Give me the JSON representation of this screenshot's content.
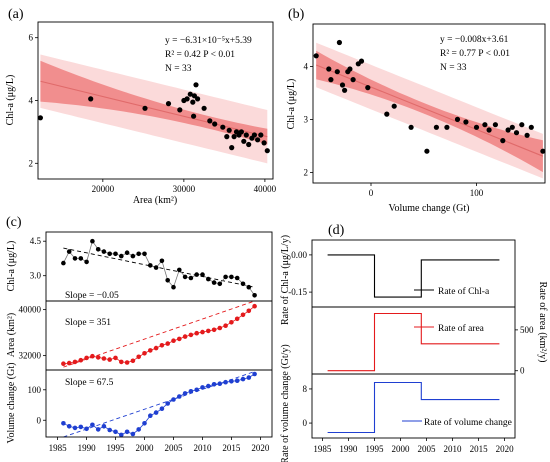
{
  "chart_data": [
    {
      "panel_label": "(a)",
      "type": "scatter",
      "xlabel": "Area (km²)",
      "ylabel": "Chl-a (μg/L)",
      "xlim": [
        12000,
        41000
      ],
      "ylim": [
        1.5,
        6.5
      ],
      "xticks": [
        20000,
        30000,
        40000
      ],
      "yticks": [
        2,
        4,
        6
      ],
      "annotations": [
        "y = −6.31×10⁻⁵x+5.39",
        "R² = 0.42  P < 0.01",
        "N = 33"
      ],
      "fit": {
        "slope": -6.31e-05,
        "intercept": 5.39
      },
      "colors": {
        "points": "#000000",
        "line": "#e06a6a",
        "ci": "#f18e8e",
        "pi": "#fbdada"
      },
      "points": [
        {
          "x": 12300,
          "y": 3.45
        },
        {
          "x": 18500,
          "y": 4.05
        },
        {
          "x": 25200,
          "y": 3.75
        },
        {
          "x": 28100,
          "y": 3.9
        },
        {
          "x": 29500,
          "y": 3.7
        },
        {
          "x": 30000,
          "y": 4.0
        },
        {
          "x": 30400,
          "y": 4.05
        },
        {
          "x": 30800,
          "y": 4.2
        },
        {
          "x": 31100,
          "y": 3.95
        },
        {
          "x": 31300,
          "y": 4.15
        },
        {
          "x": 31500,
          "y": 4.5
        },
        {
          "x": 31700,
          "y": 4.05
        },
        {
          "x": 31200,
          "y": 3.5
        },
        {
          "x": 32500,
          "y": 3.75
        },
        {
          "x": 33200,
          "y": 3.35
        },
        {
          "x": 33800,
          "y": 3.25
        },
        {
          "x": 34800,
          "y": 3.15
        },
        {
          "x": 35300,
          "y": 2.85
        },
        {
          "x": 35600,
          "y": 3.05
        },
        {
          "x": 35900,
          "y": 2.5
        },
        {
          "x": 36200,
          "y": 2.85
        },
        {
          "x": 36500,
          "y": 3.0
        },
        {
          "x": 36800,
          "y": 2.9
        },
        {
          "x": 37100,
          "y": 3.0
        },
        {
          "x": 37400,
          "y": 2.7
        },
        {
          "x": 37700,
          "y": 2.9
        },
        {
          "x": 38000,
          "y": 2.6
        },
        {
          "x": 38400,
          "y": 2.8
        },
        {
          "x": 38700,
          "y": 2.9
        },
        {
          "x": 39100,
          "y": 2.75
        },
        {
          "x": 39500,
          "y": 2.9
        },
        {
          "x": 39900,
          "y": 2.65
        },
        {
          "x": 40300,
          "y": 2.4
        }
      ]
    },
    {
      "panel_label": "(b)",
      "type": "scatter",
      "xlabel": "Volume change (Gt)",
      "ylabel": "Chl-a (μg/L)",
      "xlim": [
        -55,
        165
      ],
      "ylim": [
        1.8,
        4.8
      ],
      "xticks": [
        0,
        100
      ],
      "yticks": [
        2,
        3,
        4
      ],
      "annotations": [
        "y = −0.008x+3.61",
        "R² = 0.77  P < 0.01",
        "N = 33"
      ],
      "fit": {
        "slope": -0.008,
        "intercept": 3.61
      },
      "colors": {
        "points": "#000000",
        "line": "#e06a6a",
        "ci": "#f18e8e",
        "pi": "#fbdada"
      },
      "points": [
        {
          "x": -52,
          "y": 4.2
        },
        {
          "x": -40,
          "y": 3.95
        },
        {
          "x": -38,
          "y": 3.75
        },
        {
          "x": -32,
          "y": 3.9
        },
        {
          "x": -30,
          "y": 4.45
        },
        {
          "x": -27,
          "y": 3.65
        },
        {
          "x": -25,
          "y": 3.55
        },
        {
          "x": -22,
          "y": 3.9
        },
        {
          "x": -20,
          "y": 3.95
        },
        {
          "x": -17,
          "y": 3.75
        },
        {
          "x": -12,
          "y": 4.05
        },
        {
          "x": -9,
          "y": 4.1
        },
        {
          "x": -3,
          "y": 3.6
        },
        {
          "x": 15,
          "y": 3.1
        },
        {
          "x": 22,
          "y": 3.25
        },
        {
          "x": 38,
          "y": 2.85
        },
        {
          "x": 53,
          "y": 2.4
        },
        {
          "x": 62,
          "y": 2.85
        },
        {
          "x": 72,
          "y": 2.85
        },
        {
          "x": 82,
          "y": 3.0
        },
        {
          "x": 90,
          "y": 2.95
        },
        {
          "x": 100,
          "y": 2.85
        },
        {
          "x": 108,
          "y": 2.9
        },
        {
          "x": 112,
          "y": 2.8
        },
        {
          "x": 118,
          "y": 2.9
        },
        {
          "x": 125,
          "y": 2.6
        },
        {
          "x": 130,
          "y": 2.8
        },
        {
          "x": 134,
          "y": 2.85
        },
        {
          "x": 138,
          "y": 2.75
        },
        {
          "x": 143,
          "y": 2.9
        },
        {
          "x": 148,
          "y": 2.7
        },
        {
          "x": 152,
          "y": 2.85
        },
        {
          "x": 163,
          "y": 2.4
        }
      ]
    },
    {
      "panel_label": "(c)",
      "type": "line",
      "xlim": [
        1983,
        2022
      ],
      "xticks": [
        1985,
        1990,
        1995,
        2000,
        2005,
        2010,
        2015,
        2020
      ],
      "x": [
        1986,
        1987,
        1988,
        1989,
        1990,
        1991,
        1992,
        1993,
        1994,
        1995,
        1996,
        1997,
        1998,
        1999,
        2000,
        2001,
        2002,
        2003,
        2004,
        2005,
        2006,
        2007,
        2008,
        2009,
        2010,
        2011,
        2012,
        2013,
        2014,
        2015,
        2016,
        2017,
        2018,
        2019
      ],
      "series": [
        {
          "ylabel": "Chl-a (μg/L)",
          "ylim": [
            1.9,
            4.9
          ],
          "yticks": [
            4.5,
            3.0
          ],
          "ytick_labels": [
            "4.5",
            "3.0"
          ],
          "slope_label": "Slope = −0.05",
          "color": "#000000",
          "trend": [
            1986,
            4.2,
            2019,
            2.5
          ],
          "values": [
            3.55,
            4.05,
            3.75,
            3.75,
            3.6,
            4.5,
            4.15,
            4.05,
            3.95,
            3.95,
            3.85,
            4.0,
            3.85,
            3.95,
            3.95,
            3.45,
            3.35,
            3.65,
            2.8,
            2.5,
            3.25,
            2.95,
            2.9,
            3.05,
            3.05,
            2.85,
            2.7,
            2.65,
            2.95,
            2.95,
            2.9,
            2.65,
            2.5,
            2.15
          ]
        },
        {
          "ylabel": "Area (km²)",
          "ylim": [
            29500,
            41500
          ],
          "yticks": [
            40000,
            32000
          ],
          "ytick_labels": [
            "40000",
            "32000"
          ],
          "slope_label": "Slope = 351",
          "color": "#e41a1c",
          "trend": [
            1986,
            30000,
            2019,
            41500
          ],
          "values": [
            30600,
            30700,
            30900,
            31200,
            31600,
            31900,
            31700,
            31500,
            31300,
            31600,
            30900,
            30800,
            31100,
            31800,
            32400,
            32900,
            33300,
            33800,
            34100,
            34600,
            34900,
            35300,
            35600,
            35900,
            36100,
            36300,
            36500,
            36800,
            37200,
            37800,
            38400,
            39100,
            39800,
            40600
          ]
        },
        {
          "ylabel": "Volume change (Gt)",
          "ylim": [
            -55,
            165
          ],
          "yticks": [
            100,
            0
          ],
          "ytick_labels": [
            "100",
            "0"
          ],
          "slope_label": "Slope = 67.5",
          "color": "#1f3fd1",
          "trend": [
            1986,
            -55,
            2019,
            160
          ],
          "values": [
            -10,
            -20,
            -25,
            -22,
            -28,
            -15,
            -30,
            -20,
            -32,
            -38,
            -48,
            -38,
            -45,
            -30,
            -10,
            15,
            25,
            38,
            55,
            68,
            78,
            88,
            95,
            100,
            108,
            112,
            118,
            120,
            125,
            128,
            130,
            135,
            140,
            152
          ]
        }
      ]
    },
    {
      "panel_label": "(d)",
      "type": "line",
      "xlim": [
        1983,
        2022
      ],
      "xticks": [
        1985,
        1990,
        1995,
        2000,
        2005,
        2010,
        2015,
        2020
      ],
      "series": [
        {
          "name": "Rate of Chl-a",
          "ylabel": "Rate of Chl-a (μg/L/y)",
          "axis": "left",
          "ylim": [
            -0.21,
            0.06
          ],
          "yticks": [
            0.0,
            -0.15
          ],
          "ytick_labels": [
            "0.00",
            "-0.15"
          ],
          "color": "#000000",
          "segments": [
            [
              1986,
              1995,
              0.0
            ],
            [
              1995,
              2004,
              -0.17
            ],
            [
              2004,
              2019,
              -0.02
            ]
          ]
        },
        {
          "name": "Rate of area",
          "ylabel": "Rate of area (km²/y)",
          "axis": "right",
          "ylim": [
            -40,
            780
          ],
          "yticks": [
            500,
            0
          ],
          "ytick_labels": [
            "500",
            "0"
          ],
          "color": "#e41a1c",
          "segments": [
            [
              1986,
              1995,
              0
            ],
            [
              1995,
              2004,
              700
            ],
            [
              2004,
              2019,
              330
            ]
          ]
        },
        {
          "name": "Rate of volume change",
          "ylabel": "Rate of volume change (Gt/y)",
          "axis": "left",
          "ylim": [
            -3.5,
            11.5
          ],
          "yticks": [
            8,
            0
          ],
          "ytick_labels": [
            "8",
            "0"
          ],
          "color": "#1f3fd1",
          "segments": [
            [
              1986,
              1995,
              -2.2
            ],
            [
              1995,
              2004,
              9.5
            ],
            [
              2004,
              2019,
              5.5
            ]
          ]
        }
      ]
    }
  ]
}
